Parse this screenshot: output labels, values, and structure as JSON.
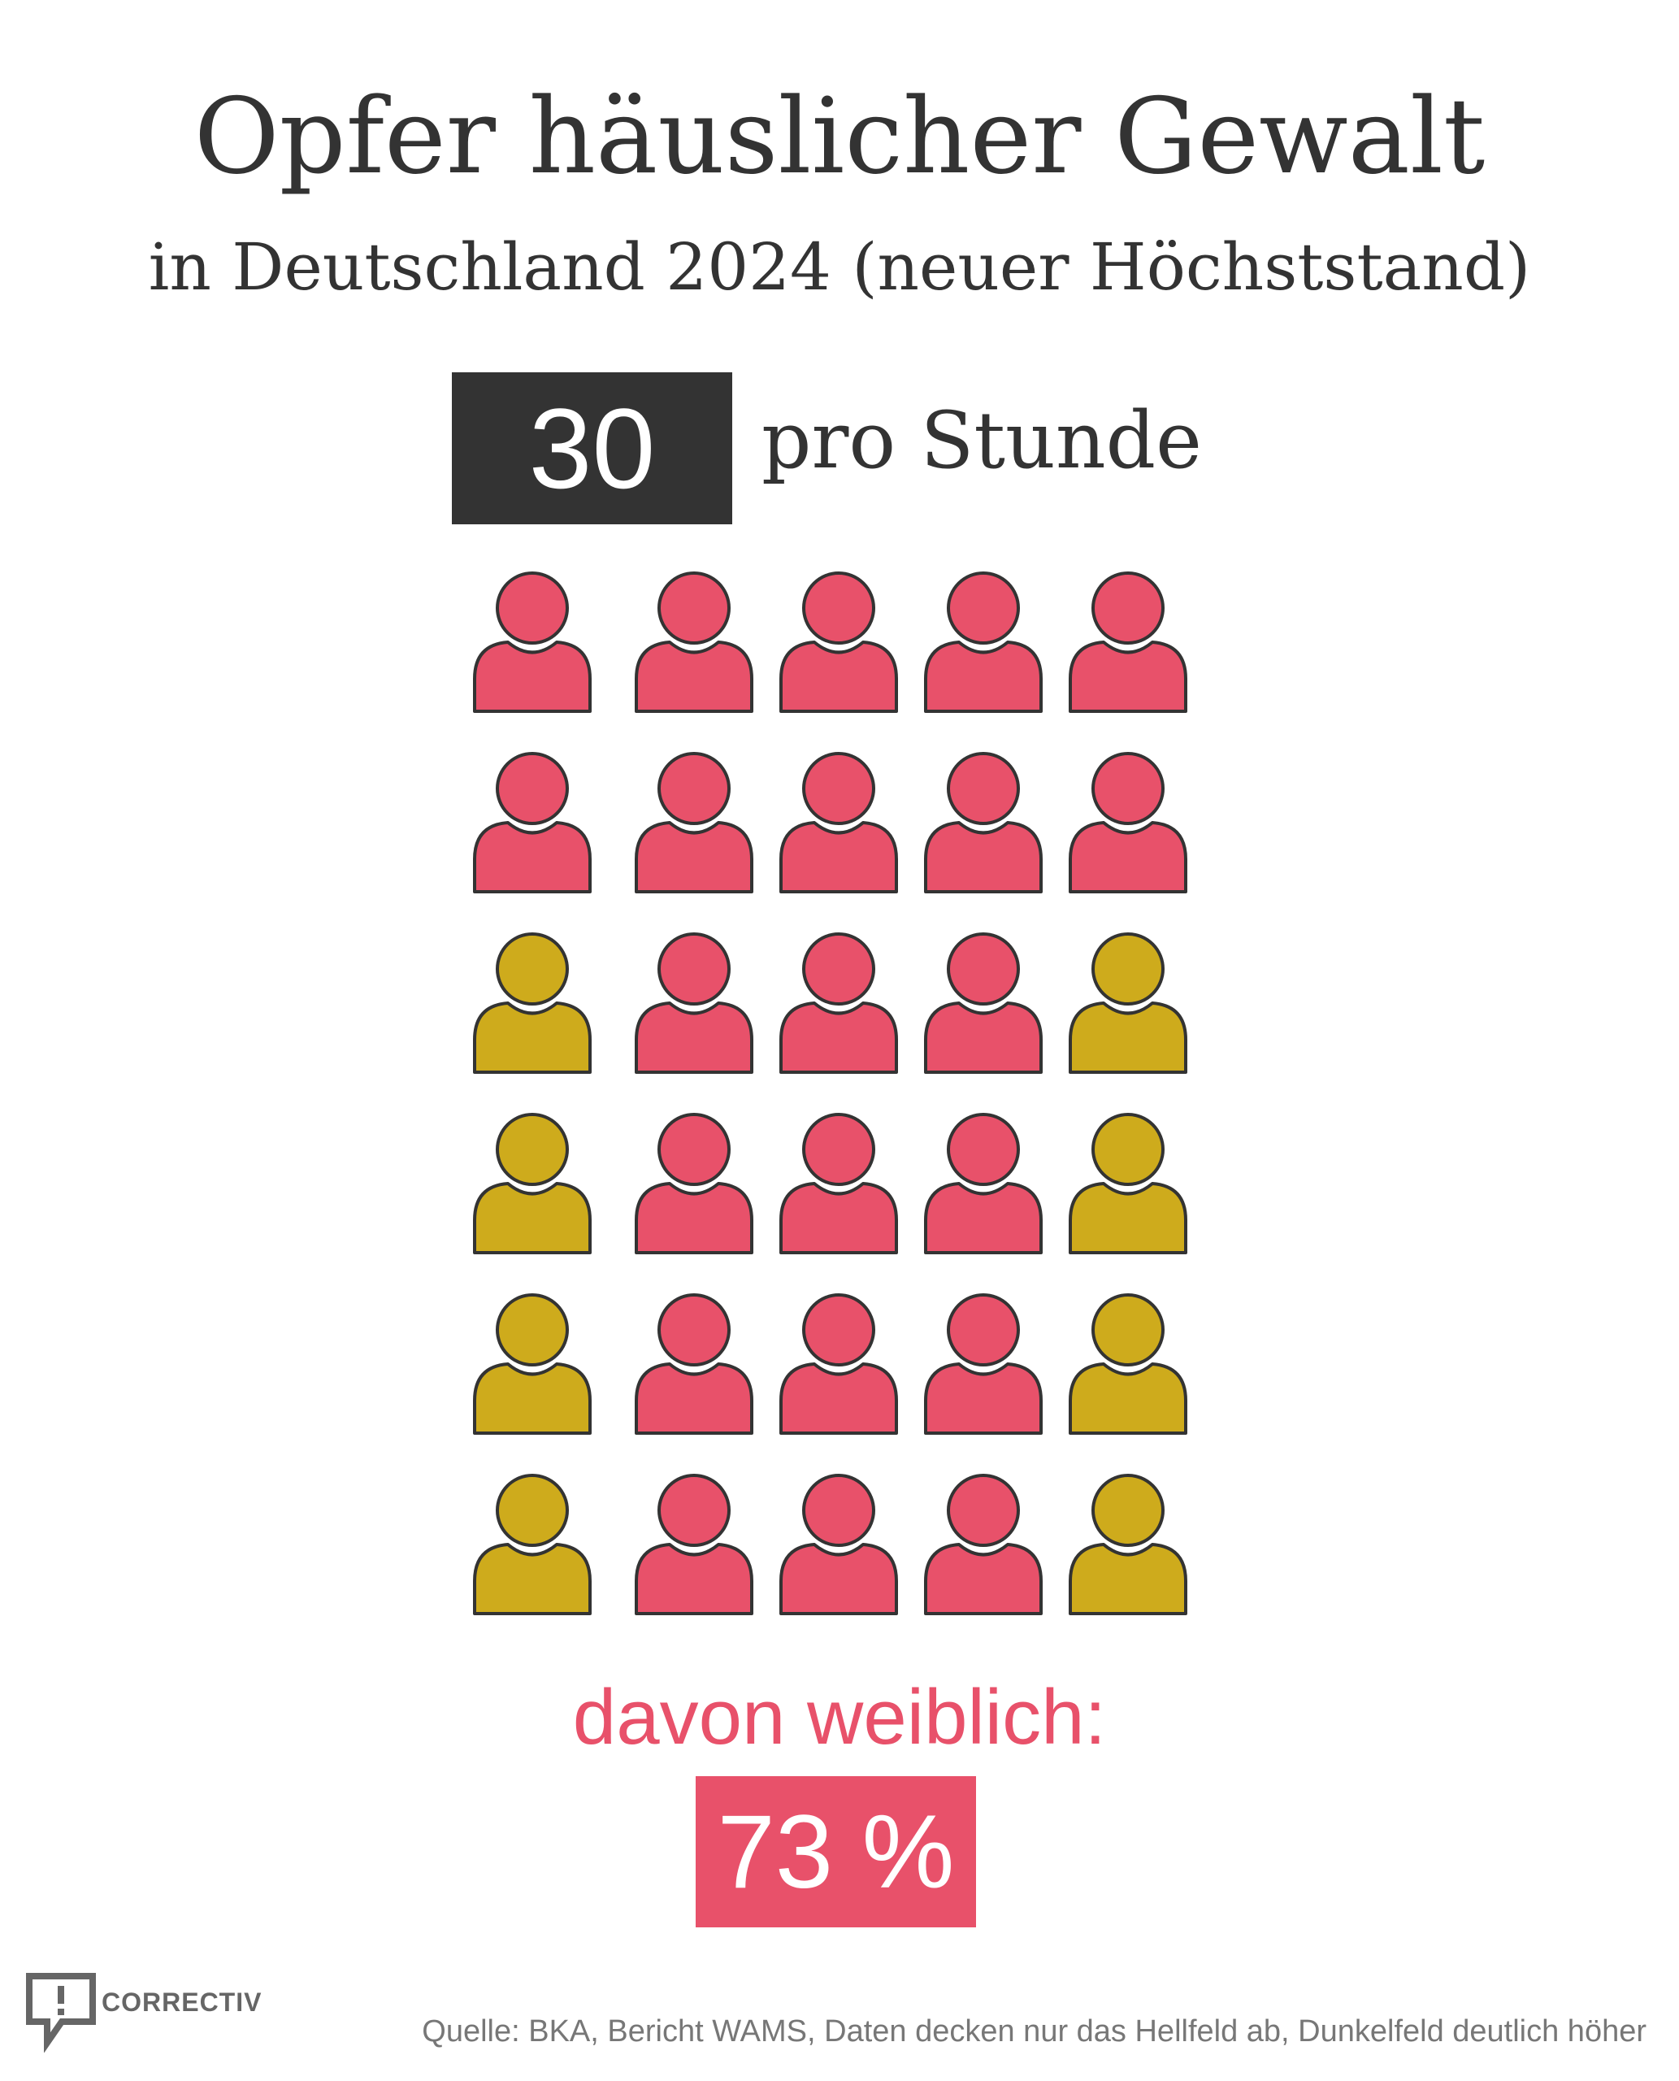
{
  "title": "Opfer häuslicher Gewalt",
  "subtitle": "in Deutschland 2024 (neuer Höchststand)",
  "rate": {
    "value": "30",
    "unit": "pro Stunde"
  },
  "female": {
    "label": "davon weiblich:",
    "value": "73 %"
  },
  "source": "Quelle: BKA, Bericht WAMS, Daten decken nur das Hellfeld ab, Dunkelfeld deutlich höher",
  "logo": {
    "text": "CORRECTIV",
    "icon": "speech-bubble-exclamation-icon"
  },
  "colors": {
    "female": "#e8516a",
    "male": "#ceab1c",
    "outline": "#333333",
    "box_dark": "#333333"
  },
  "chart_data": {
    "type": "pictogram",
    "rows": 6,
    "columns": 5,
    "total": 30,
    "icons": [
      [
        "female",
        "female",
        "female",
        "female",
        "female"
      ],
      [
        "female",
        "female",
        "female",
        "female",
        "female"
      ],
      [
        "male",
        "female",
        "female",
        "female",
        "male"
      ],
      [
        "male",
        "female",
        "female",
        "female",
        "male"
      ],
      [
        "male",
        "female",
        "female",
        "female",
        "male"
      ],
      [
        "male",
        "female",
        "female",
        "female",
        "male"
      ]
    ]
  }
}
